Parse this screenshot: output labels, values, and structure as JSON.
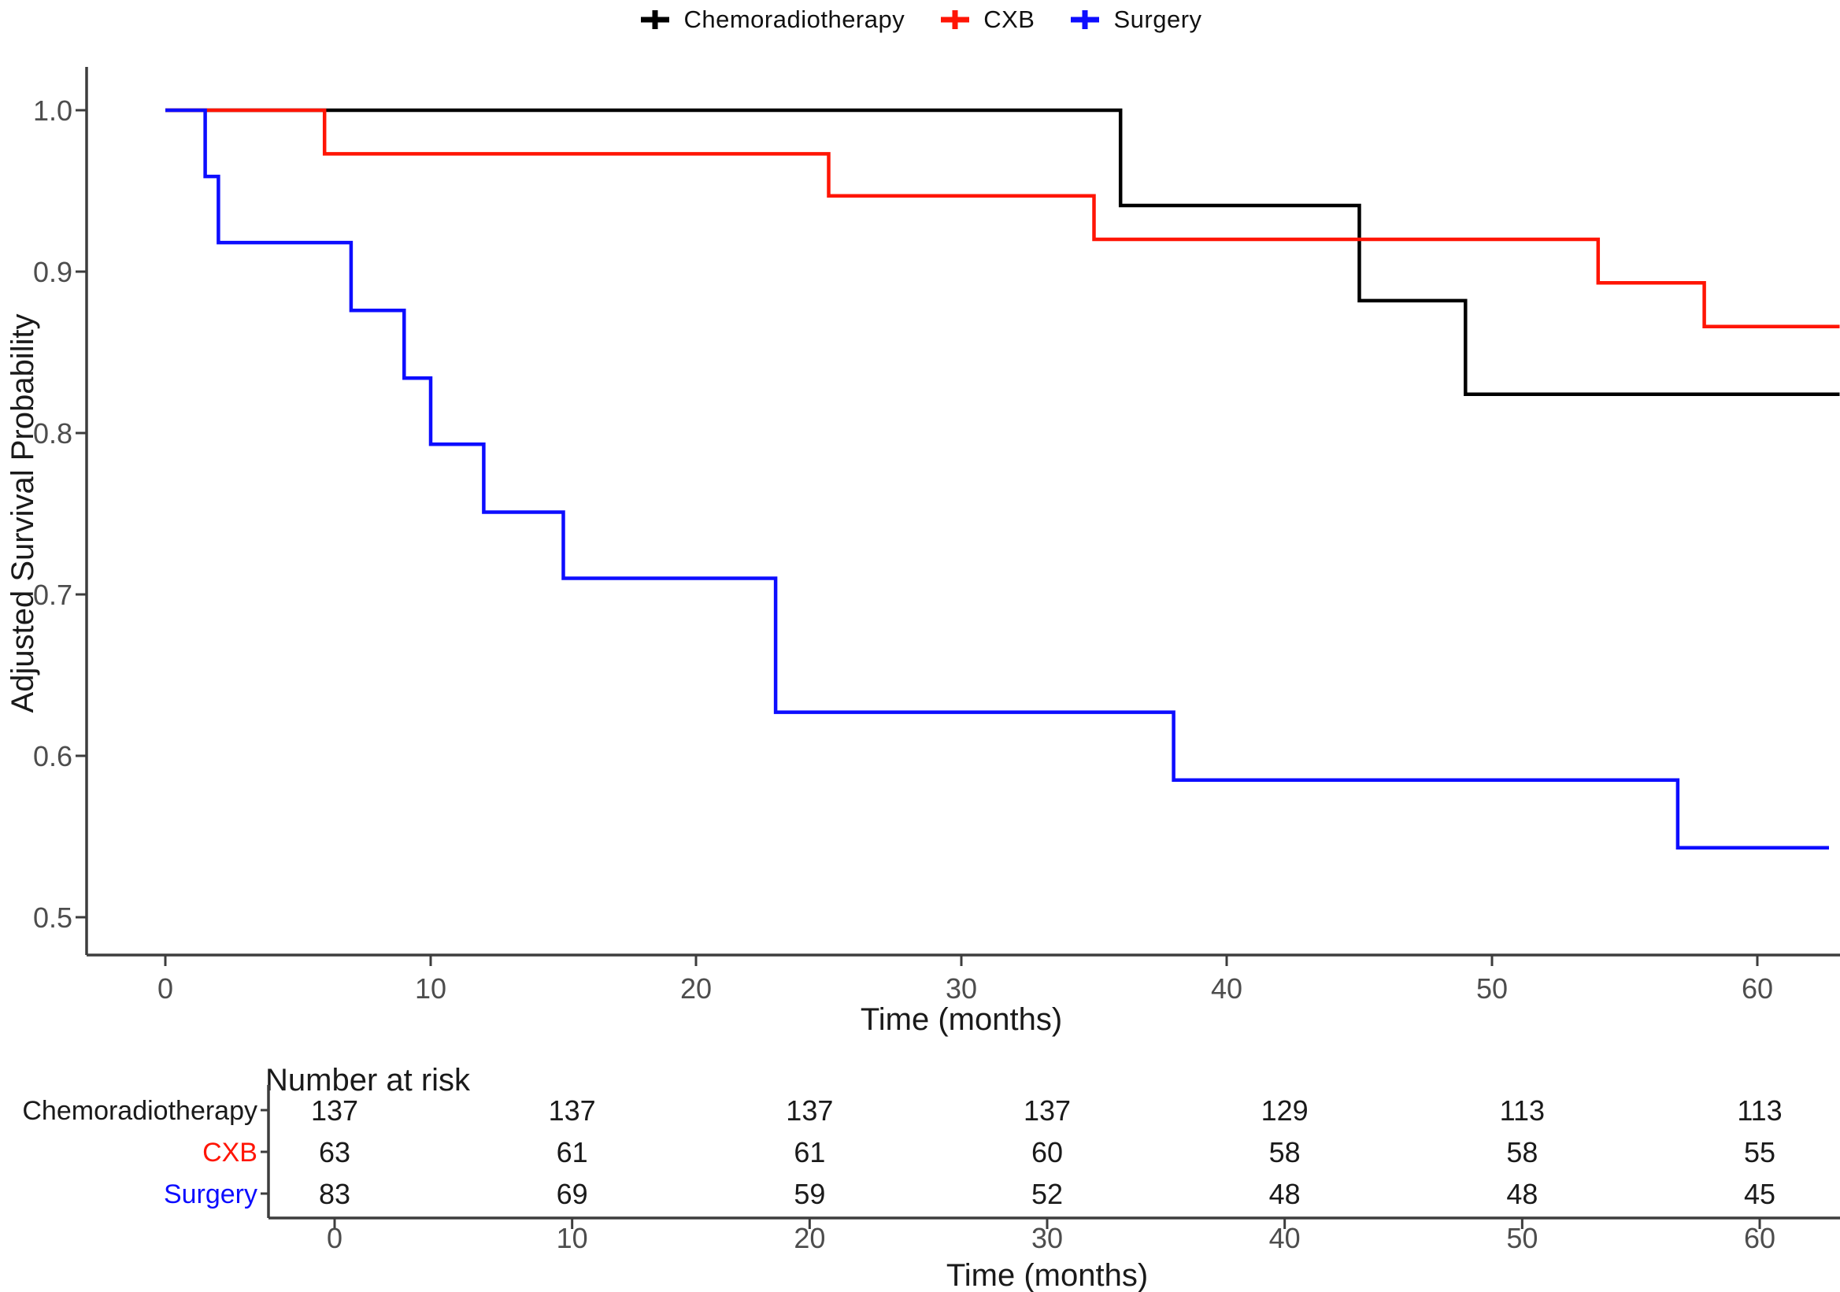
{
  "legend": {
    "items": [
      {
        "label": "Chemoradiotherapy"
      },
      {
        "label": "CXB"
      },
      {
        "label": "Surgery"
      }
    ]
  },
  "chart_data": {
    "type": "line",
    "subtype": "kaplan-meier-step",
    "title": "",
    "xlabel": "Time (months)",
    "ylabel": "Adjusted Survival Probability",
    "xlim": [
      0,
      63
    ],
    "ylim": [
      0.48,
      1.02
    ],
    "x_ticks": [
      0,
      10,
      20,
      30,
      40,
      50,
      60
    ],
    "x_tick_labels": [
      "0",
      "10",
      "20",
      "30",
      "40",
      "50",
      "60"
    ],
    "y_ticks": [
      1.0,
      0.9,
      0.8,
      0.7,
      0.6,
      0.5
    ],
    "y_tick_labels": [
      "1.0",
      "0.9",
      "0.8",
      "0.7",
      "0.6",
      "0.5"
    ],
    "grid": false,
    "legend_position": "top",
    "series": [
      {
        "name": "Chemoradiotherapy",
        "color": "#000000",
        "steps": [
          [
            0,
            1.0
          ],
          [
            36,
            1.0
          ],
          [
            36,
            0.941
          ],
          [
            45,
            0.941
          ],
          [
            45,
            0.882
          ],
          [
            49,
            0.882
          ],
          [
            49,
            0.824
          ],
          [
            63.1,
            0.824
          ]
        ]
      },
      {
        "name": "CXB",
        "color": "#ff1505",
        "steps": [
          [
            0,
            1.0
          ],
          [
            6,
            1.0
          ],
          [
            6,
            0.973
          ],
          [
            25,
            0.973
          ],
          [
            25,
            0.947
          ],
          [
            35,
            0.947
          ],
          [
            35,
            0.92
          ],
          [
            54,
            0.92
          ],
          [
            54,
            0.893
          ],
          [
            58,
            0.893
          ],
          [
            58,
            0.866
          ],
          [
            63.1,
            0.866
          ]
        ]
      },
      {
        "name": "Surgery",
        "color": "#0d0dff",
        "steps": [
          [
            0,
            1.0
          ],
          [
            1.5,
            1.0
          ],
          [
            1.5,
            0.959
          ],
          [
            2,
            0.959
          ],
          [
            2,
            0.918
          ],
          [
            7,
            0.918
          ],
          [
            7,
            0.876
          ],
          [
            9,
            0.876
          ],
          [
            9,
            0.834
          ],
          [
            10,
            0.834
          ],
          [
            10,
            0.793
          ],
          [
            12,
            0.793
          ],
          [
            12,
            0.751
          ],
          [
            15,
            0.751
          ],
          [
            15,
            0.71
          ],
          [
            23,
            0.71
          ],
          [
            23,
            0.627
          ],
          [
            38,
            0.627
          ],
          [
            38,
            0.585
          ],
          [
            57,
            0.585
          ],
          [
            57,
            0.543
          ],
          [
            62.7,
            0.543
          ]
        ]
      }
    ],
    "number_at_risk": {
      "title": "Number at risk",
      "xlabel": "Time (months)",
      "time_points": [
        0,
        10,
        20,
        30,
        40,
        50,
        60
      ],
      "time_labels": [
        "0",
        "10",
        "20",
        "30",
        "40",
        "50",
        "60"
      ],
      "rows": [
        {
          "name": "Chemoradiotherapy",
          "color": "#1a1a1a",
          "values": [
            137,
            137,
            137,
            137,
            129,
            113,
            113
          ]
        },
        {
          "name": "CXB",
          "color": "#ff1505",
          "values": [
            63,
            61,
            61,
            60,
            58,
            58,
            55
          ]
        },
        {
          "name": "Surgery",
          "color": "#0d0dff",
          "values": [
            83,
            69,
            59,
            52,
            48,
            48,
            45
          ]
        }
      ]
    }
  }
}
